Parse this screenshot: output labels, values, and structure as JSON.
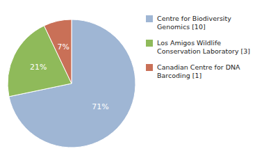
{
  "chart_data": {
    "type": "pie",
    "categories": [
      "Centre for Biodiversity\nGenomics [10]",
      "Los Amigos Wildlife\nConservation Laboratory [3]",
      "Canadian Centre for DNA\nBarcoding [1]"
    ],
    "values": [
      71,
      21,
      7
    ],
    "value_labels": [
      "71%",
      "21%",
      "7%"
    ],
    "colors": [
      "#9fb6d4",
      "#8fba5a",
      "#c97057"
    ],
    "data_labels": true,
    "legend": "right"
  }
}
